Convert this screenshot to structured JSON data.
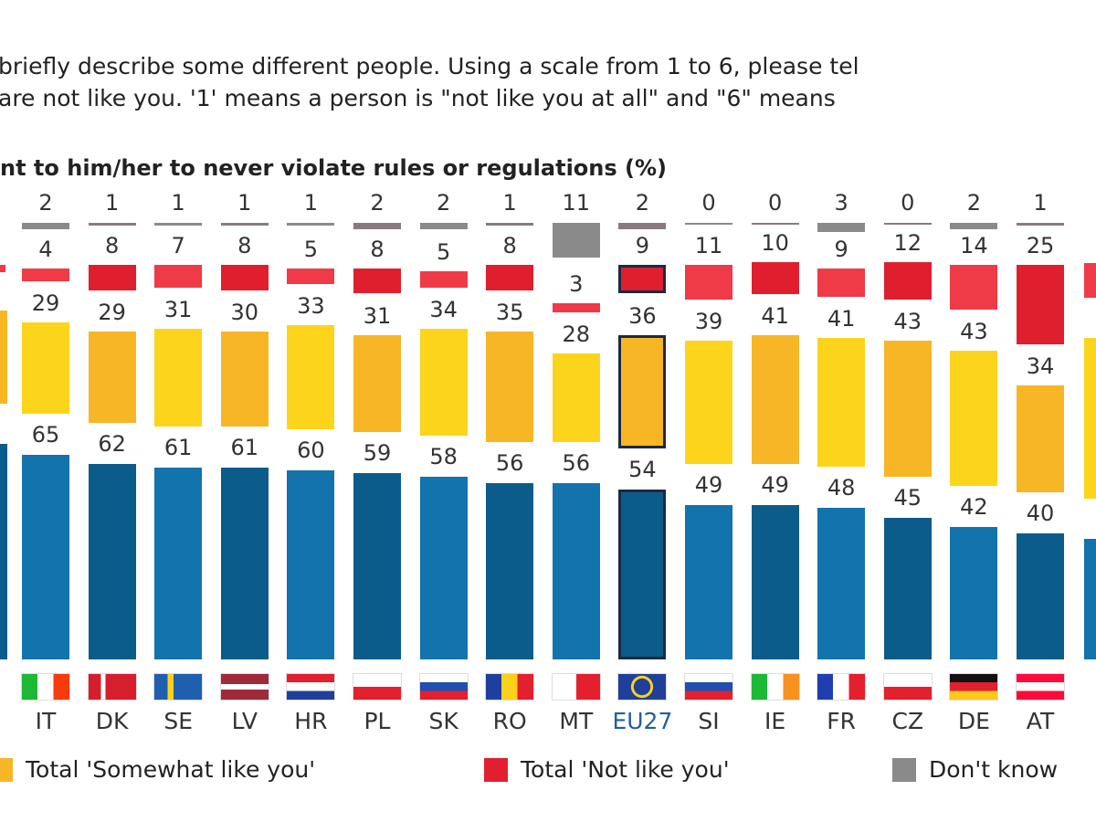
{
  "question": {
    "line1": "briefly describe some different people. Using a scale from 1 to 6, please tel",
    "line2": "are not like you. '1' means a person is \"not like you at all\" and \"6\" means"
  },
  "chart_data": {
    "type": "bar",
    "stacked": true,
    "title": "nt to him/her to never violate rules or regulations (%)",
    "categories": [
      "IT",
      "DK",
      "SE",
      "LV",
      "HR",
      "PL",
      "SK",
      "RO",
      "MT",
      "EU27",
      "SI",
      "IE",
      "FR",
      "CZ",
      "DE",
      "AT"
    ],
    "series": [
      {
        "name": "Total 'Somewhat like you'",
        "key": "somewhat",
        "values": [
          29,
          29,
          31,
          30,
          33,
          31,
          34,
          35,
          28,
          36,
          39,
          41,
          41,
          43,
          43,
          34
        ]
      },
      {
        "name": "Total 'Not like you'",
        "key": "not",
        "values": [
          4,
          8,
          7,
          8,
          5,
          8,
          5,
          8,
          3,
          9,
          11,
          10,
          9,
          12,
          14,
          25
        ]
      },
      {
        "name": "Don't know",
        "key": "dk",
        "values": [
          2,
          1,
          1,
          1,
          1,
          2,
          2,
          1,
          11,
          2,
          0,
          0,
          3,
          0,
          2,
          1
        ]
      },
      {
        "name": "",
        "key": "like",
        "values": [
          65,
          62,
          61,
          61,
          60,
          59,
          58,
          56,
          56,
          54,
          49,
          49,
          48,
          45,
          42,
          40
        ]
      }
    ],
    "highlight": "EU27",
    "legend_position": "bottom",
    "colors": {
      "like": [
        "#1273ad",
        "#0b5b8b"
      ],
      "somewhat": [
        "#fdd41c",
        "#f7b625"
      ],
      "not": [
        "#ef3a47",
        "#df1f2e"
      ],
      "dk": [
        "#8a8a8a",
        "#8a7a80"
      ],
      "highlight_border": "#1b2a44",
      "eu_label": "#1f5fa0"
    }
  },
  "legend": [
    {
      "label": "Total 'Somewhat like you'",
      "color": "#f7b625"
    },
    {
      "label": "Total 'Not like you'",
      "color": "#e0202e"
    },
    {
      "label": "Don't know",
      "color": "#8a8a8a"
    }
  ]
}
